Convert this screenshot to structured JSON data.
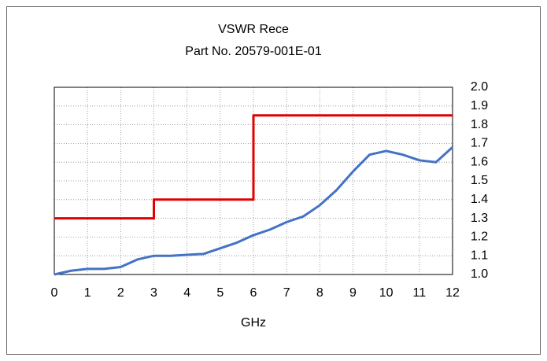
{
  "chart_data": {
    "type": "line",
    "title": "VSWR Rece",
    "subtitle": "Part No. 20579-001E-01",
    "x_label": "GHz",
    "xlim": [
      0,
      12
    ],
    "xticks": [
      0,
      1,
      2,
      3,
      4,
      5,
      6,
      7,
      8,
      9,
      10,
      11,
      12
    ],
    "ylim": [
      1,
      2
    ],
    "yticks": [
      {
        "value": 1,
        "label": "1.0"
      },
      1.1,
      1.2,
      1.3,
      1.4,
      1.5,
      1.6,
      1.7,
      1.8,
      1.9,
      {
        "value": 2,
        "label": "2.0"
      }
    ],
    "y_axis_side": "right",
    "grid": true,
    "series": [
      {
        "color": "#e00000",
        "x": [
          0,
          3,
          3,
          6,
          6,
          12
        ],
        "values": [
          1.3,
          1.3,
          1.4,
          1.4,
          1.85,
          1.85
        ]
      },
      {
        "color": "#4472c4",
        "x": [
          0,
          0.5,
          1,
          1.5,
          2,
          2.5,
          3,
          3.5,
          4,
          4.5,
          5,
          5.5,
          6,
          6.5,
          7,
          7.5,
          8,
          8.5,
          9,
          9.5,
          10,
          10.5,
          11,
          11.5,
          12
        ],
        "values": [
          1.0,
          1.02,
          1.03,
          1.03,
          1.04,
          1.08,
          1.1,
          1.1,
          1.105,
          1.11,
          1.14,
          1.17,
          1.21,
          1.24,
          1.28,
          1.31,
          1.37,
          1.45,
          1.55,
          1.64,
          1.66,
          1.64,
          1.61,
          1.6,
          1.68
        ]
      }
    ]
  }
}
